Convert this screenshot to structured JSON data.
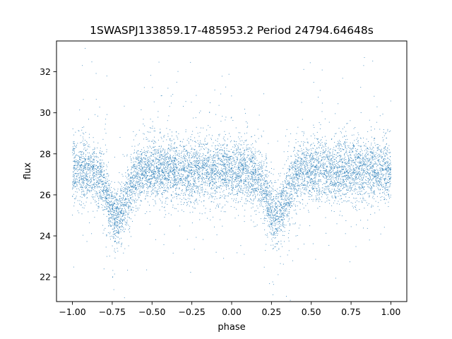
{
  "chart_data": {
    "type": "scatter",
    "title": "1SWASPJ133859.17-485953.2 Period 24794.64648s",
    "xlabel": "phase",
    "ylabel": "flux",
    "xlim": [
      -1.1,
      1.1
    ],
    "ylim": [
      20.8,
      33.5
    ],
    "xticks": [
      -1.0,
      -0.75,
      -0.5,
      -0.25,
      0.0,
      0.25,
      0.5,
      0.75,
      1.0
    ],
    "xtick_labels": [
      "−1.00",
      "−0.75",
      "−0.50",
      "−0.25",
      "0.00",
      "0.25",
      "0.50",
      "0.75",
      "1.00"
    ],
    "yticks": [
      22,
      24,
      26,
      28,
      30,
      32
    ],
    "ytick_labels": [
      "22",
      "24",
      "26",
      "28",
      "30",
      "32"
    ],
    "grid": false,
    "point_color": "#1f77b4",
    "series": [
      {
        "point_count": 9000,
        "baseline_flux": 27.2,
        "scatter_sd": 0.75,
        "dips": [
          {
            "phase": -0.72,
            "depth": 2.3,
            "width": 0.06
          },
          {
            "phase": 0.28,
            "depth": 2.3,
            "width": 0.06
          }
        ],
        "sample_points": [
          {
            "x": -0.95,
            "y": 27.1
          },
          {
            "x": -0.85,
            "y": 26.6
          },
          {
            "x": -0.78,
            "y": 25.6
          },
          {
            "x": -0.72,
            "y": 24.9
          },
          {
            "x": -0.65,
            "y": 25.8
          },
          {
            "x": -0.55,
            "y": 27.0
          },
          {
            "x": -0.4,
            "y": 27.4
          },
          {
            "x": -0.25,
            "y": 27.2
          },
          {
            "x": -0.1,
            "y": 27.3
          },
          {
            "x": 0.0,
            "y": 27.1
          },
          {
            "x": 0.15,
            "y": 26.6
          },
          {
            "x": 0.22,
            "y": 25.7
          },
          {
            "x": 0.28,
            "y": 24.8
          },
          {
            "x": 0.35,
            "y": 25.8
          },
          {
            "x": 0.45,
            "y": 27.0
          },
          {
            "x": 0.6,
            "y": 27.4
          },
          {
            "x": 0.75,
            "y": 27.2
          },
          {
            "x": 0.9,
            "y": 27.1
          },
          {
            "x": 1.0,
            "y": 27.0
          }
        ]
      }
    ]
  }
}
